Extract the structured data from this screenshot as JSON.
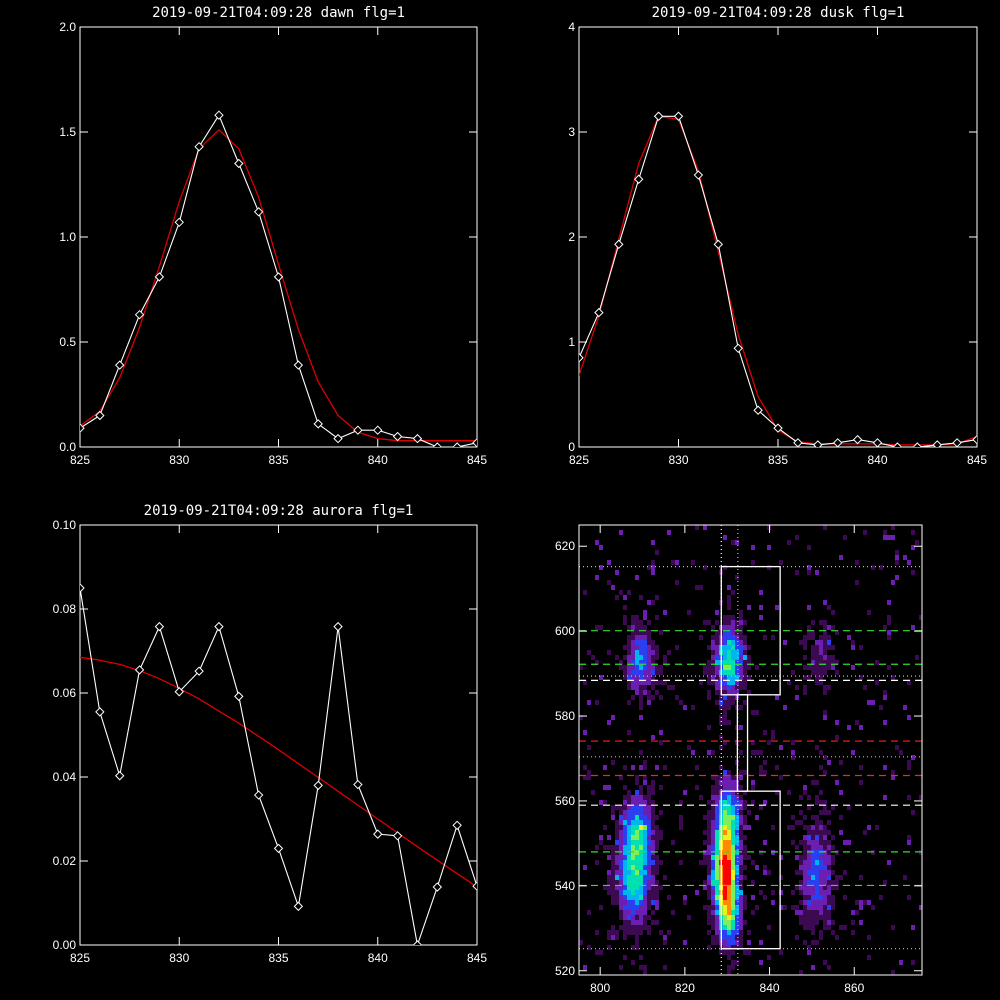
{
  "chart_data": [
    {
      "id": "dawn",
      "type": "line",
      "title": "2019-09-21T04:09:28 dawn flg=1",
      "xlim": [
        825,
        845
      ],
      "ylim": [
        0,
        2.0
      ],
      "xticks": [
        "825",
        "830",
        "835",
        "840",
        "845"
      ],
      "yticks": [
        "0.0",
        "0.5",
        "1.0",
        "1.5",
        "2.0"
      ],
      "series": [
        {
          "style": "white line with diamond markers",
          "color": "#ffffff",
          "x": [
            825,
            826,
            827,
            828,
            829,
            830,
            831,
            832,
            833,
            834,
            835,
            836,
            837,
            838,
            839,
            840,
            841,
            842,
            843,
            844,
            845
          ],
          "y": [
            0.09,
            0.15,
            0.39,
            0.63,
            0.81,
            1.07,
            1.43,
            1.58,
            1.35,
            1.12,
            0.81,
            0.39,
            0.11,
            0.04,
            0.08,
            0.08,
            0.05,
            0.04,
            0.0,
            0.0,
            0.02
          ]
        },
        {
          "style": "red fit curve",
          "color": "#dd0000",
          "x": [
            825,
            826,
            827,
            828,
            829,
            830,
            831,
            832,
            833,
            834,
            835,
            836,
            837,
            838,
            839,
            840,
            841,
            842,
            843,
            844,
            845
          ],
          "y": [
            0.1,
            0.17,
            0.33,
            0.57,
            0.86,
            1.17,
            1.42,
            1.51,
            1.42,
            1.19,
            0.87,
            0.56,
            0.31,
            0.15,
            0.07,
            0.04,
            0.03,
            0.03,
            0.03,
            0.03,
            0.03
          ]
        }
      ]
    },
    {
      "id": "dusk",
      "type": "line",
      "title": "2019-09-21T04:09:28 dusk flg=1",
      "xlim": [
        825,
        845
      ],
      "ylim": [
        0,
        4
      ],
      "xticks": [
        "825",
        "830",
        "835",
        "840",
        "845"
      ],
      "yticks": [
        "0",
        "1",
        "2",
        "3",
        "4"
      ],
      "series": [
        {
          "style": "white line with diamond markers",
          "color": "#ffffff",
          "x": [
            825,
            826,
            827,
            828,
            829,
            830,
            831,
            832,
            833,
            834,
            835,
            836,
            837,
            838,
            839,
            840,
            841,
            842,
            843,
            844,
            845
          ],
          "y": [
            0.85,
            1.28,
            1.93,
            2.55,
            3.15,
            3.15,
            2.59,
            1.93,
            0.94,
            0.35,
            0.18,
            0.04,
            0.02,
            0.04,
            0.07,
            0.04,
            0.0,
            0.0,
            0.02,
            0.04,
            0.07
          ]
        },
        {
          "style": "red fit curve",
          "color": "#dd0000",
          "x": [
            825,
            826,
            827,
            828,
            829,
            830,
            831,
            832,
            833,
            834,
            835,
            836,
            837,
            838,
            839,
            840,
            841,
            842,
            843,
            844,
            845
          ],
          "y": [
            0.68,
            1.25,
            1.98,
            2.7,
            3.15,
            3.12,
            2.63,
            1.86,
            1.07,
            0.48,
            0.16,
            0.05,
            0.03,
            0.03,
            0.03,
            0.03,
            0.02,
            0.02,
            0.02,
            0.03,
            0.1
          ]
        }
      ]
    },
    {
      "id": "aurora",
      "type": "line",
      "title": "2019-09-21T04:09:28 aurora flg=1",
      "xlim": [
        825,
        845
      ],
      "ylim": [
        0,
        0.1
      ],
      "xticks": [
        "825",
        "830",
        "835",
        "840",
        "845"
      ],
      "yticks": [
        "0.00",
        "0.02",
        "0.04",
        "0.06",
        "0.08",
        "0.10"
      ],
      "series": [
        {
          "style": "white line with diamond markers",
          "color": "#ffffff",
          "x": [
            825,
            826,
            827,
            828,
            829,
            830,
            831,
            832,
            833,
            834,
            835,
            836,
            837,
            838,
            839,
            840,
            841,
            842,
            843,
            844,
            845
          ],
          "y": [
            0.085,
            0.0555,
            0.0403,
            0.0655,
            0.0758,
            0.0603,
            0.0652,
            0.0758,
            0.0592,
            0.0357,
            0.023,
            0.0092,
            0.038,
            0.0758,
            0.0382,
            0.0264,
            0.026,
            0.0,
            0.0138,
            0.0285,
            0.014
          ]
        },
        {
          "style": "red fit curve",
          "color": "#dd0000",
          "x": [
            825,
            826,
            827,
            828,
            829,
            830,
            831,
            832,
            833,
            834,
            835,
            836,
            837,
            838,
            839,
            840,
            841,
            842,
            843,
            844,
            845
          ],
          "y": [
            0.0685,
            0.0678,
            0.0668,
            0.0653,
            0.0634,
            0.0611,
            0.0586,
            0.0557,
            0.0528,
            0.0497,
            0.0465,
            0.0432,
            0.0399,
            0.0366,
            0.0333,
            0.03,
            0.0267,
            0.0234,
            0.0202,
            0.017,
            0.0138
          ]
        }
      ]
    },
    {
      "id": "image",
      "type": "heatmap",
      "title": "",
      "xlim": [
        795,
        876
      ],
      "ylim": [
        519,
        625
      ],
      "xticks": [
        "800",
        "820",
        "840",
        "860"
      ],
      "yticks": [
        "520",
        "540",
        "560",
        "580",
        "600",
        "620"
      ],
      "colormap": [
        "#000000",
        "#3b0a50",
        "#6a1fb0",
        "#2a3ff0",
        "#00b4f0",
        "#00e0b0",
        "#7bf05a",
        "#f0f020",
        "#ff8c00",
        "#ff0000"
      ],
      "blobs": [
        {
          "x": 829.5,
          "y": 543,
          "sx": 2.0,
          "sy": 6.5,
          "amp": 1.0
        },
        {
          "x": 830.0,
          "y": 556,
          "sx": 2.1,
          "sy": 6.0,
          "amp": 0.55
        },
        {
          "x": 830.5,
          "y": 532,
          "sx": 1.9,
          "sy": 4.5,
          "amp": 0.5
        },
        {
          "x": 830.5,
          "y": 593,
          "sx": 2.3,
          "sy": 5.5,
          "amp": 0.6
        },
        {
          "x": 808.0,
          "y": 543,
          "sx": 2.6,
          "sy": 8.0,
          "amp": 0.58
        },
        {
          "x": 809.0,
          "y": 554,
          "sx": 2.4,
          "sy": 5.0,
          "amp": 0.35
        },
        {
          "x": 809.5,
          "y": 593,
          "sx": 2.2,
          "sy": 5.0,
          "amp": 0.42
        },
        {
          "x": 851.0,
          "y": 543,
          "sx": 2.4,
          "sy": 8.0,
          "amp": 0.36
        },
        {
          "x": 852.0,
          "y": 595,
          "sx": 2.2,
          "sy": 5.0,
          "amp": 0.15
        }
      ],
      "hlines": [
        {
          "y": 615.2,
          "color": "#ff88ff",
          "style": "dotted"
        },
        {
          "y": 600.1,
          "color": "#30e030",
          "style": "dashed"
        },
        {
          "y": 592.2,
          "color": "#30e030",
          "style": "dashed"
        },
        {
          "y": 589.4,
          "color": "#ff88ff",
          "style": "dotted"
        },
        {
          "y": 588.4,
          "color": "#ffffff",
          "style": "dashed"
        },
        {
          "y": 574.1,
          "color": "#ff2020",
          "style": "dashed"
        },
        {
          "y": 570.4,
          "color": "#ff88ff",
          "style": "dotted"
        },
        {
          "y": 566.0,
          "color": "#ff2020",
          "style": "dashed"
        },
        {
          "y": 559.0,
          "color": "#ffffff",
          "style": "dashed"
        },
        {
          "y": 548.0,
          "color": "#30e030",
          "style": "dashed"
        },
        {
          "y": 540.1,
          "color": "#30e030",
          "style": "dashed"
        },
        {
          "y": 525.2,
          "color": "#ff88ff",
          "style": "dotted"
        }
      ],
      "vlines": [
        {
          "x": 828.6,
          "color": "#ffffff",
          "style": "dotted"
        },
        {
          "x": 832.5,
          "color": "#ff88ff",
          "style": "dotted"
        }
      ],
      "boxes": [
        {
          "x0": 828.6,
          "x1": 842.5,
          "y0": 585.0,
          "y1": 615.2
        },
        {
          "x0": 828.6,
          "x1": 842.5,
          "y0": 525.2,
          "y1": 562.3
        },
        {
          "x0": 832.4,
          "x1": 834.8,
          "y0": 562.3,
          "y1": 585.0
        }
      ]
    }
  ]
}
